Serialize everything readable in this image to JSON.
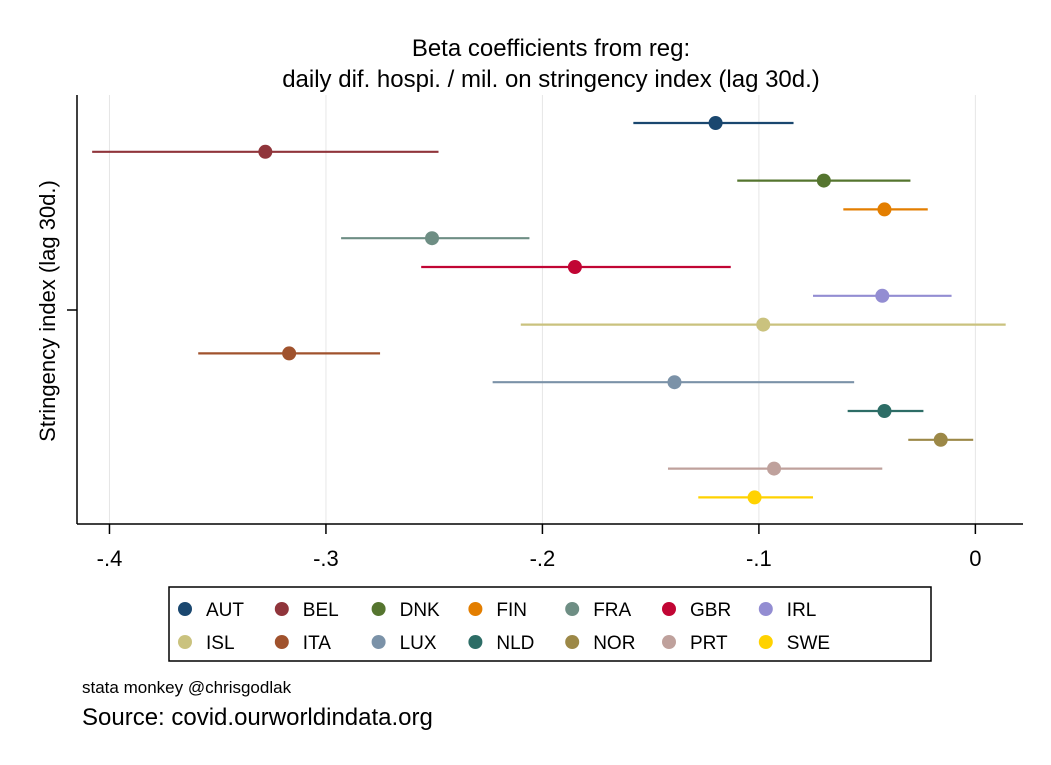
{
  "chart_data": {
    "type": "scatter",
    "subtype": "coefficient-plot",
    "title_lines": [
      "Beta coefficients from reg:",
      "daily dif. hospi. / mil. on stringency index (lag 30d.)"
    ],
    "ylabel": "Stringency index (lag 30d.)",
    "xlabel": "",
    "xlim": [
      -0.415,
      0.022
    ],
    "xticks": [
      -0.4,
      -0.3,
      -0.2,
      -0.1,
      0
    ],
    "xtick_labels": [
      "-.4",
      "-.3",
      "-.2",
      "-.1",
      "0"
    ],
    "grid": "vertical",
    "legend_position": "bottom",
    "legend_columns": 7,
    "series": [
      {
        "name": "AUT",
        "color": "#1a476f",
        "estimate": -0.12,
        "ci_low": -0.158,
        "ci_high": -0.084
      },
      {
        "name": "BEL",
        "color": "#90353b",
        "estimate": -0.328,
        "ci_low": -0.408,
        "ci_high": -0.248
      },
      {
        "name": "DNK",
        "color": "#55752f",
        "estimate": -0.07,
        "ci_low": -0.11,
        "ci_high": -0.03
      },
      {
        "name": "FIN",
        "color": "#e37e00",
        "estimate": -0.042,
        "ci_low": -0.061,
        "ci_high": -0.022
      },
      {
        "name": "FRA",
        "color": "#6e8e84",
        "estimate": -0.251,
        "ci_low": -0.293,
        "ci_high": -0.206
      },
      {
        "name": "GBR",
        "color": "#c10534",
        "estimate": -0.185,
        "ci_low": -0.256,
        "ci_high": -0.113
      },
      {
        "name": "IRL",
        "color": "#938dd2",
        "estimate": -0.043,
        "ci_low": -0.075,
        "ci_high": -0.011
      },
      {
        "name": "ISL",
        "color": "#cac27e",
        "estimate": -0.098,
        "ci_low": -0.21,
        "ci_high": 0.014
      },
      {
        "name": "ITA",
        "color": "#a0522d",
        "estimate": -0.317,
        "ci_low": -0.359,
        "ci_high": -0.275
      },
      {
        "name": "LUX",
        "color": "#7b92a8",
        "estimate": -0.139,
        "ci_low": -0.223,
        "ci_high": -0.056
      },
      {
        "name": "NLD",
        "color": "#2d6d66",
        "estimate": -0.042,
        "ci_low": -0.059,
        "ci_high": -0.024
      },
      {
        "name": "NOR",
        "color": "#9c8847",
        "estimate": -0.016,
        "ci_low": -0.031,
        "ci_high": -0.001
      },
      {
        "name": "PRT",
        "color": "#bfa19c",
        "estimate": -0.093,
        "ci_low": -0.142,
        "ci_high": -0.043
      },
      {
        "name": "SWE",
        "color": "#ffd200",
        "estimate": -0.102,
        "ci_low": -0.128,
        "ci_high": -0.075
      }
    ]
  },
  "notes": {
    "credit": "stata monkey @chrisgodlak",
    "source": "Source: covid.ourworldindata.org"
  }
}
